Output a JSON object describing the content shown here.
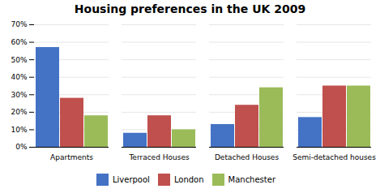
{
  "chart_data": {
    "type": "bar",
    "title": "Housing preferences in the UK 2009",
    "categories": [
      "Apartments",
      "Terraced Houses",
      "Detached Houses",
      "Semi-detached houses"
    ],
    "series": [
      {
        "name": "Liverpool",
        "color": "#4472c4",
        "values": [
          57,
          8,
          13,
          17
        ]
      },
      {
        "name": "London",
        "color": "#c0504d",
        "values": [
          28,
          18,
          24,
          35
        ]
      },
      {
        "name": "Manchester",
        "color": "#9bbb59",
        "values": [
          18,
          10,
          34,
          35
        ]
      }
    ],
    "ylim": [
      0,
      70
    ],
    "yticks": [
      {
        "value": 0,
        "label": "0%"
      },
      {
        "value": 10,
        "label": "10%"
      },
      {
        "value": 20,
        "label": "20%"
      },
      {
        "value": 30,
        "label": "30%"
      },
      {
        "value": 40,
        "label": "40%"
      },
      {
        "value": 50,
        "label": "50%"
      },
      {
        "value": 60,
        "label": "60%"
      },
      {
        "value": 70,
        "label": "70%"
      }
    ],
    "grid": true,
    "legend": "bottom"
  }
}
